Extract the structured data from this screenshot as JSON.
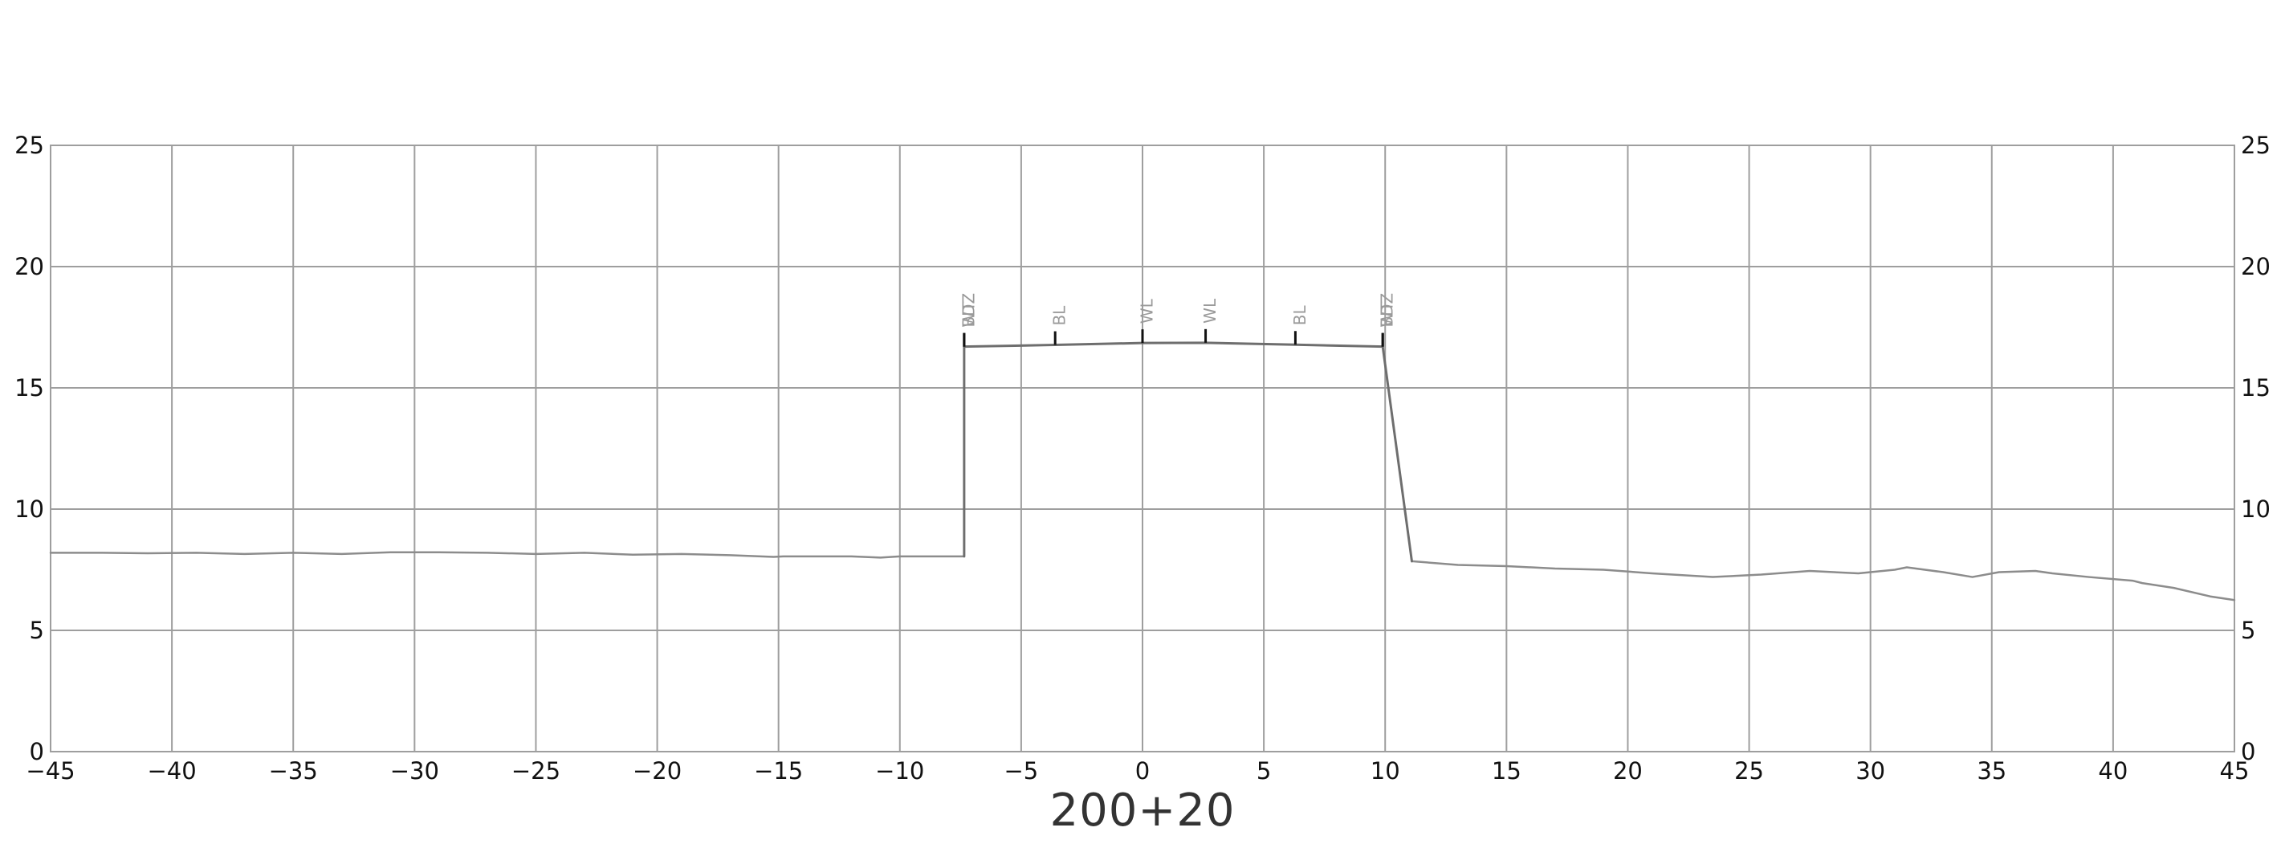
{
  "chart_data": {
    "type": "line",
    "title": "200+20",
    "xlabel": "",
    "ylabel": "",
    "xlim": [
      -45,
      45
    ],
    "ylim": [
      0,
      25
    ],
    "x_ticks": [
      -45,
      -40,
      -35,
      -30,
      -25,
      -20,
      -15,
      -10,
      -5,
      0,
      5,
      10,
      15,
      20,
      25,
      30,
      35,
      40,
      45
    ],
    "y_ticks": [
      0,
      5,
      10,
      15,
      20,
      25
    ],
    "x_tick_labels": [
      "−45",
      "−40",
      "−35",
      "−30",
      "−25",
      "−20",
      "−15",
      "−10",
      "−5",
      "0",
      "5",
      "10",
      "15",
      "20",
      "25",
      "30",
      "35",
      "40",
      "45"
    ],
    "y_tick_labels": [
      "0",
      "5",
      "10",
      "15",
      "20",
      "25"
    ],
    "y_ticks_right": true,
    "grid": true,
    "legend": "none",
    "colors": {
      "grid": "#9e9e9e",
      "ground_line": "#8c8c8c",
      "design_line": "#6e6e6e",
      "marker_tick": "#111111",
      "marker_text": "#9a9a9a",
      "axis_text": "#111111"
    },
    "series": [
      {
        "role": "existing-ground",
        "points": [
          [
            -45,
            8.2
          ],
          [
            -43,
            8.2
          ],
          [
            -41,
            8.18
          ],
          [
            -39,
            8.2
          ],
          [
            -37,
            8.15
          ],
          [
            -35,
            8.2
          ],
          [
            -33,
            8.15
          ],
          [
            -31,
            8.22
          ],
          [
            -29,
            8.22
          ],
          [
            -27,
            8.2
          ],
          [
            -25,
            8.15
          ],
          [
            -23,
            8.2
          ],
          [
            -21,
            8.12
          ],
          [
            -19,
            8.15
          ],
          [
            -17,
            8.1
          ],
          [
            -15.2,
            8.03
          ],
          [
            -14.8,
            8.05
          ],
          [
            -12,
            8.05
          ],
          [
            -10.8,
            8.0
          ],
          [
            -10,
            8.05
          ],
          [
            -8.5,
            8.05
          ],
          [
            -7.4,
            8.05
          ]
        ]
      },
      {
        "role": "existing-ground",
        "points": [
          [
            11.1,
            7.85
          ],
          [
            13,
            7.7
          ],
          [
            15,
            7.65
          ],
          [
            17,
            7.55
          ],
          [
            19,
            7.5
          ],
          [
            21,
            7.35
          ],
          [
            23.5,
            7.2
          ],
          [
            25.5,
            7.3
          ],
          [
            27.5,
            7.45
          ],
          [
            29.5,
            7.35
          ],
          [
            31,
            7.5
          ],
          [
            31.5,
            7.6
          ],
          [
            33,
            7.4
          ],
          [
            34.2,
            7.2
          ],
          [
            35.3,
            7.4
          ],
          [
            36.8,
            7.45
          ],
          [
            37.5,
            7.35
          ],
          [
            39,
            7.2
          ],
          [
            40.8,
            7.05
          ],
          [
            41.2,
            6.95
          ],
          [
            42.5,
            6.75
          ],
          [
            44,
            6.4
          ],
          [
            45,
            6.25
          ]
        ]
      },
      {
        "role": "design-section",
        "points": [
          [
            -7.35,
            8.05
          ],
          [
            -7.35,
            16.7
          ],
          [
            -3.6,
            16.77
          ],
          [
            0,
            16.85
          ],
          [
            2.6,
            16.86
          ],
          [
            6.3,
            16.78
          ],
          [
            9.9,
            16.7
          ],
          [
            11.1,
            7.85
          ]
        ]
      }
    ],
    "markers": [
      {
        "x": -7.35,
        "y": 16.7,
        "label": "BDZ"
      },
      {
        "x": -7.35,
        "y": 16.7,
        "label": "WT"
      },
      {
        "x": -3.6,
        "y": 16.77,
        "label": "BL"
      },
      {
        "x": 0,
        "y": 16.85,
        "label": "WL"
      },
      {
        "x": 2.6,
        "y": 16.86,
        "label": "WL"
      },
      {
        "x": 6.3,
        "y": 16.78,
        "label": "BL"
      },
      {
        "x": 9.9,
        "y": 16.7,
        "label": "BDZ"
      },
      {
        "x": 9.9,
        "y": 16.7,
        "label": "WT"
      }
    ]
  }
}
